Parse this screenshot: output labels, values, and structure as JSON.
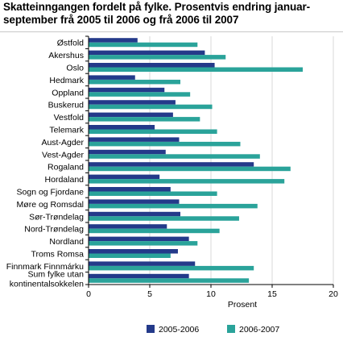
{
  "title": "Skatteinngangen fordelt på fylke. Prosentvis endring januar-september frå 2005 til 2006 og frå 2006 til 2007",
  "colors": {
    "series1": "#243a8a",
    "series2": "#2aa39a",
    "grid": "#d9d9d9",
    "axis": "#000000"
  },
  "chart_data": {
    "type": "bar",
    "orientation": "horizontal",
    "title": "Skatteinngangen fordelt på fylke. Prosentvis endring januar-september frå 2005 til 2006 og frå 2006 til 2007",
    "xlabel": "Prosent",
    "ylabel": "",
    "xlim": [
      0,
      20
    ],
    "xticks": [
      0,
      5,
      10,
      15,
      20
    ],
    "grid": true,
    "legend": "bottom",
    "categories": [
      [
        "Østfold"
      ],
      [
        "Akershus"
      ],
      [
        "Oslo"
      ],
      [
        "Hedmark"
      ],
      [
        "Oppland"
      ],
      [
        "Buskerud"
      ],
      [
        "Vestfold"
      ],
      [
        "Telemark"
      ],
      [
        "Aust-Agder"
      ],
      [
        "Vest-Agder"
      ],
      [
        "Rogaland"
      ],
      [
        "Hordaland"
      ],
      [
        "Sogn og Fjordane"
      ],
      [
        "Møre og Romsdal"
      ],
      [
        "Sør-Trøndelag"
      ],
      [
        "Nord-Trøndelag"
      ],
      [
        "Nordland"
      ],
      [
        "Troms Romsa"
      ],
      [
        "Finnmark Finnmárku"
      ],
      [
        "Sum fylke utan",
        "kontinentalsokkelen"
      ]
    ],
    "series": [
      {
        "name": "2005-2006",
        "values": [
          4.0,
          9.5,
          10.3,
          3.8,
          6.2,
          7.1,
          6.9,
          5.4,
          7.4,
          6.3,
          13.5,
          5.8,
          6.7,
          7.4,
          7.5,
          6.4,
          8.2,
          7.3,
          8.7,
          8.2
        ]
      },
      {
        "name": "2006-2007",
        "values": [
          8.9,
          11.2,
          17.5,
          7.5,
          8.3,
          10.1,
          9.1,
          10.5,
          12.4,
          14.0,
          16.5,
          16.0,
          10.5,
          13.8,
          12.3,
          10.7,
          8.9,
          6.7,
          13.5,
          13.1
        ]
      }
    ]
  }
}
